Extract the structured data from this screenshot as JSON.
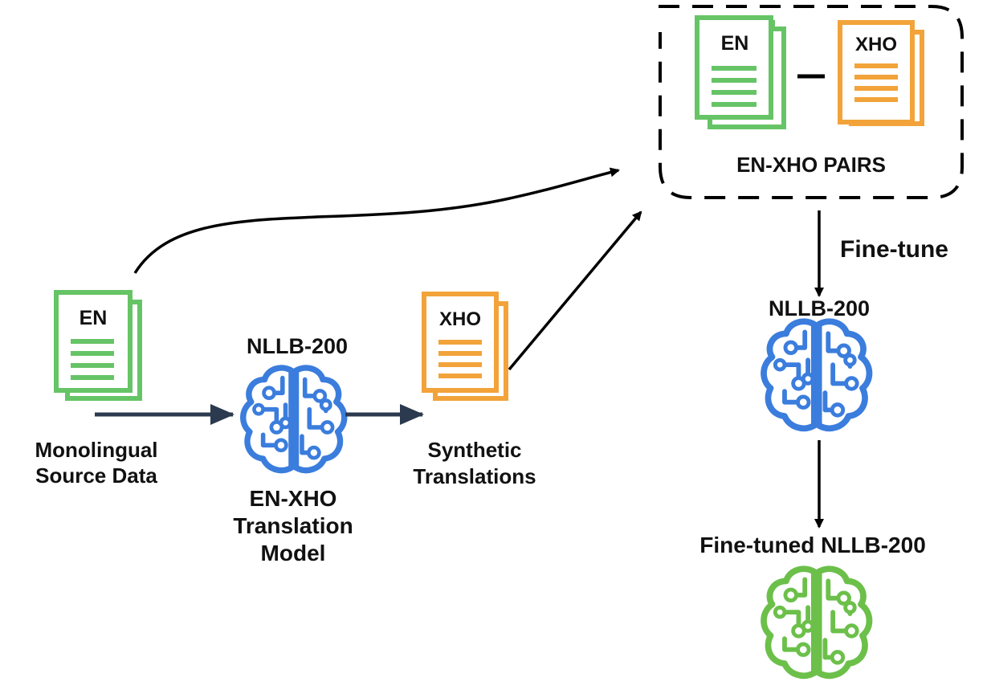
{
  "labels": {
    "pairs_title": "EN-XHO PAIRS",
    "finetune": "Fine-tune",
    "nllb_top": "NLLB-200",
    "nllb_right": "NLLB-200",
    "finetuned": "Fine-tuned NLLB-200",
    "mono_line1": "Monolingual",
    "mono_line2": "Source Data",
    "model_line1": "EN-XHO",
    "model_line2": "Translation",
    "model_line3": "Model",
    "synth_line1": "Synthetic",
    "synth_line2": "Translations"
  },
  "documents": {
    "pair_en": "EN",
    "pair_xho": "XHO",
    "source_en": "EN",
    "synthetic_xho": "XHO"
  },
  "colors": {
    "en_doc": "#66c466",
    "xho_doc": "#f2a33a",
    "brain_base": "#3b7ddd",
    "brain_finetuned": "#6cc04a",
    "arrow": "#2b3a4e",
    "line": "#000000"
  },
  "icons": [
    "document-icon",
    "brain-circuit-icon",
    "arrow-icon"
  ]
}
